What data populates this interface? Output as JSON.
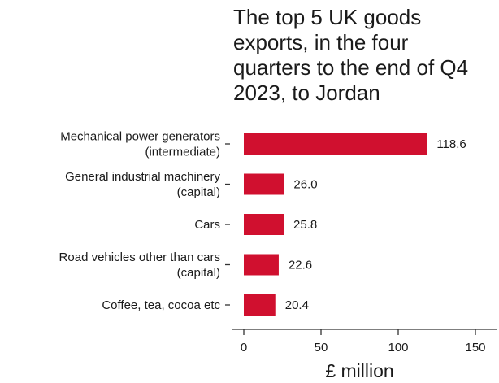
{
  "chart_data": {
    "type": "bar",
    "orientation": "horizontal",
    "title": "The top 5 UK goods\nexports, in the four\nquarters to the end of Q4\n2023, to Jordan",
    "categories": [
      [
        "Mechanical power generators",
        "(intermediate)"
      ],
      [
        "General industrial machinery",
        "(capital)"
      ],
      [
        "Cars"
      ],
      [
        "Road vehicles other than cars",
        "(capital)"
      ],
      [
        "Coffee, tea, cocoa etc"
      ]
    ],
    "values": [
      118.6,
      26.0,
      25.8,
      22.6,
      20.4
    ],
    "value_labels": [
      "118.6",
      "26.0",
      "25.8",
      "22.6",
      "20.4"
    ],
    "xlabel": "£ million",
    "ylabel": "",
    "xlim": [
      0,
      150
    ],
    "xticks": [
      0,
      50,
      100,
      150
    ],
    "grid": false,
    "bar_color": "#d0102f",
    "text_color": "#1a1a1a",
    "axis_color": "#333333"
  }
}
